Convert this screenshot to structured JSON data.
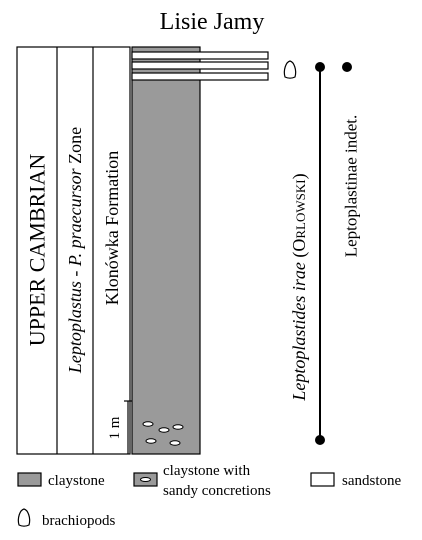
{
  "title": "Lisie Jamy",
  "columns": {
    "system": "UPPER CAMBRIAN",
    "zone": {
      "genus": "Leptoplastus",
      "separator": " - ",
      "species": "P. praecursor",
      "suffix": " Zone"
    },
    "formation": "Klonówka Formation"
  },
  "scale_bar": {
    "label": "1 m"
  },
  "taxa": [
    {
      "name_italic": "Leptoplastides irae",
      "author": "(Orlowski)"
    },
    {
      "name_italic": "",
      "author": "Leptoplastinae indet."
    }
  ],
  "legend": {
    "claystone": "claystone",
    "claystone_concretions_line1": "claystone with",
    "claystone_concretions_line2": "sandy concretions",
    "sandstone": "sandstone",
    "brachiopods": "brachiopods"
  },
  "colors": {
    "claystone": "#9a9a9a",
    "sandstone": "#ffffff",
    "line": "#000000"
  }
}
